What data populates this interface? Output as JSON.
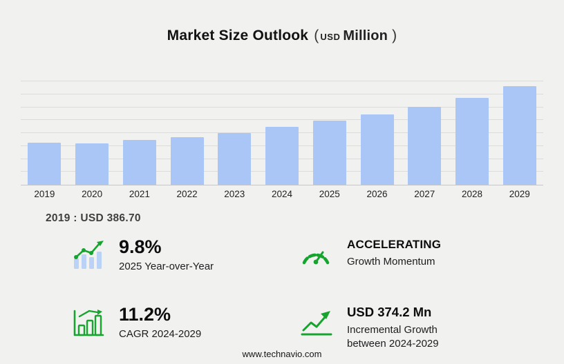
{
  "header": {
    "title": "Market Size Outlook",
    "paren_open": "(",
    "unit_small": "USD",
    "unit_word": "Million",
    "paren_close": ")"
  },
  "chart_data": {
    "type": "bar",
    "title": "Market Size Outlook (USD Million)",
    "categories": [
      "2019",
      "2020",
      "2021",
      "2022",
      "2023",
      "2024",
      "2025",
      "2026",
      "2027",
      "2028",
      "2029"
    ],
    "values": [
      386.7,
      380.9,
      408.5,
      438.6,
      472.5,
      534.3,
      586.6,
      645.0,
      713.3,
      798.9,
      908.5
    ],
    "xlabel": "",
    "ylabel": "",
    "ylim": [
      0,
      950
    ],
    "grid": true,
    "gridline_count": 8,
    "legend": "none",
    "bar_color": "#a9c6f6"
  },
  "baseline_note": "2019 : USD  386.70",
  "stats": [
    {
      "icon": "yoy-bars-trend-icon",
      "value": "9.8%",
      "label": "2025 Year-over-Year"
    },
    {
      "icon": "speedometer-icon",
      "value": "ACCELERATING",
      "label": "Growth Momentum"
    },
    {
      "icon": "cagr-bar-chart-icon",
      "value": "11.2%",
      "label": "CAGR 2024-2029"
    },
    {
      "icon": "incremental-growth-arrow-icon",
      "value": "USD 374.2 Mn",
      "label": "Incremental Growth between 2024-2029"
    }
  ],
  "footer": "www.technavio.com",
  "colors": {
    "background": "#f1f1f0",
    "bar": "#a9c6f6",
    "gridline": "#dbdbdb",
    "accent_green": "#16a32e",
    "text": "#111111"
  }
}
